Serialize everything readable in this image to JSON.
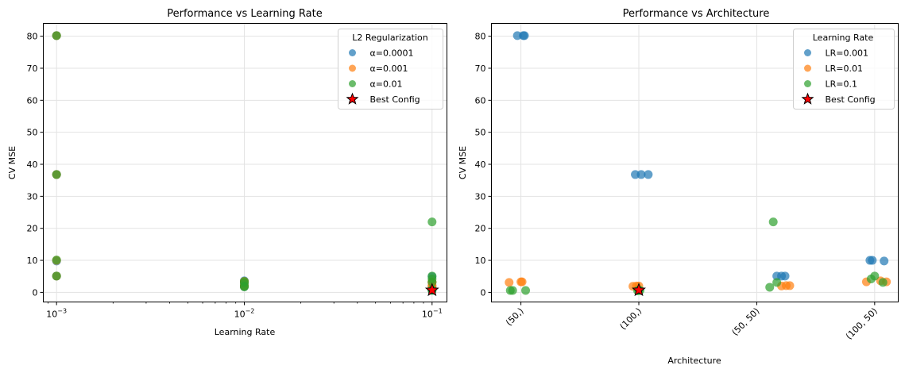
{
  "colors": {
    "blue": "#1f77b4",
    "orange": "#ff7f0e",
    "green": "#2ca02c",
    "best": "#ff0000"
  },
  "chart_data": [
    {
      "type": "scatter",
      "title": "Performance vs Learning Rate",
      "xlabel": "Learning Rate",
      "ylabel": "CV MSE",
      "xscale": "log",
      "xlim": [
        0.00085,
        0.12
      ],
      "ylim": [
        -3,
        84
      ],
      "grid": true,
      "xticks": [
        {
          "value": 0.001,
          "base": "10",
          "exp": "−3"
        },
        {
          "value": 0.01,
          "base": "10",
          "exp": "−2"
        },
        {
          "value": 0.1,
          "base": "10",
          "exp": "−1"
        }
      ],
      "yticks": [
        0,
        10,
        20,
        30,
        40,
        50,
        60,
        70,
        80
      ],
      "legend": {
        "title": "L2 Regularization",
        "placement": "top-right",
        "entries": [
          {
            "label": "α=0.0001",
            "color_key": "blue",
            "marker": "circle"
          },
          {
            "label": "α=0.001",
            "color_key": "orange",
            "marker": "circle"
          },
          {
            "label": "α=0.01",
            "color_key": "green",
            "marker": "circle"
          },
          {
            "label": "Best Config",
            "color_key": "best",
            "marker": "star"
          }
        ]
      },
      "series": [
        {
          "name": "α=0.0001",
          "color_key": "blue",
          "points": [
            [
              0.001,
              80.2
            ],
            [
              0.001,
              36.8
            ],
            [
              0.001,
              9.8
            ],
            [
              0.001,
              5.1
            ],
            [
              0.01,
              3.6
            ],
            [
              0.01,
              2.0
            ],
            [
              0.01,
              2.9
            ],
            [
              0.01,
              1.8
            ],
            [
              0.1,
              4.9
            ],
            [
              0.1,
              3.1
            ],
            [
              0.1,
              0.7
            ],
            [
              0.1,
              1.9
            ]
          ]
        },
        {
          "name": "α=0.001",
          "color_key": "orange",
          "points": [
            [
              0.001,
              80.2
            ],
            [
              0.001,
              36.8
            ],
            [
              0.001,
              10.0
            ],
            [
              0.001,
              5.1
            ],
            [
              0.01,
              3.3
            ],
            [
              0.01,
              2.0
            ],
            [
              0.01,
              3.4
            ],
            [
              0.01,
              2.1
            ],
            [
              0.1,
              3.3
            ],
            [
              0.1,
              3.2
            ],
            [
              0.1,
              1.8
            ],
            [
              0.1,
              2.2
            ]
          ]
        },
        {
          "name": "α=0.01",
          "color_key": "green",
          "points": [
            [
              0.001,
              80.2
            ],
            [
              0.001,
              36.8
            ],
            [
              0.001,
              10.1
            ],
            [
              0.001,
              5.1
            ],
            [
              0.01,
              3.4
            ],
            [
              0.01,
              2.0
            ],
            [
              0.01,
              3.0
            ],
            [
              0.01,
              1.7
            ],
            [
              0.1,
              0.6
            ],
            [
              0.1,
              0.8
            ],
            [
              0.1,
              5.1
            ],
            [
              0.1,
              22.0
            ],
            [
              0.1,
              4.2
            ],
            [
              0.1,
              3.2
            ]
          ]
        }
      ],
      "best": {
        "label": "Best Config",
        "point": [
          0.1,
          0.7
        ]
      }
    },
    {
      "type": "scatter",
      "title": "Performance vs Architecture",
      "xlabel": "Architecture",
      "ylabel": "CV MSE",
      "categories": [
        "(50,)",
        "(100,)",
        "(50, 50)",
        "(100, 50)"
      ],
      "xlim": [
        -0.25,
        3.2
      ],
      "ylim": [
        -3,
        84
      ],
      "grid": true,
      "yticks": [
        0,
        10,
        20,
        30,
        40,
        50,
        60,
        70,
        80
      ],
      "legend": {
        "title": "Learning Rate",
        "placement": "top-right",
        "entries": [
          {
            "label": "LR=0.001",
            "color_key": "blue",
            "marker": "circle"
          },
          {
            "label": "LR=0.01",
            "color_key": "orange",
            "marker": "circle"
          },
          {
            "label": "LR=0.1",
            "color_key": "green",
            "marker": "circle"
          },
          {
            "label": "Best Config",
            "color_key": "best",
            "marker": "star"
          }
        ]
      },
      "series": [
        {
          "name": "LR=0.001",
          "color_key": "blue",
          "points": [
            [
              -0.03,
              80.2
            ],
            [
              0.02,
              80.2
            ],
            [
              0.03,
              80.2
            ],
            [
              0.97,
              36.8
            ],
            [
              1.02,
              36.8
            ],
            [
              1.08,
              36.8
            ],
            [
              2.96,
              10.0
            ],
            [
              2.98,
              10.0
            ],
            [
              3.08,
              9.8
            ],
            [
              2.17,
              5.1
            ],
            [
              2.21,
              5.1
            ],
            [
              2.24,
              5.1
            ]
          ]
        },
        {
          "name": "LR=0.01",
          "color_key": "orange",
          "points": [
            [
              -0.1,
              3.1
            ],
            [
              0.0,
              3.3
            ],
            [
              0.01,
              3.3
            ],
            [
              0.95,
              1.9
            ],
            [
              0.98,
              2.0
            ],
            [
              1.0,
              2.0
            ],
            [
              2.93,
              3.3
            ],
            [
              3.05,
              3.6
            ],
            [
              3.1,
              3.3
            ],
            [
              2.21,
              2.0
            ],
            [
              2.25,
              2.1
            ],
            [
              2.28,
              2.1
            ]
          ]
        },
        {
          "name": "LR=0.1",
          "color_key": "green",
          "points": [
            [
              -0.09,
              0.6
            ],
            [
              -0.07,
              0.6
            ],
            [
              0.04,
              0.6
            ],
            [
              0.99,
              0.5
            ],
            [
              1.01,
              0.6
            ],
            [
              1.0,
              0.6
            ],
            [
              2.97,
              4.2
            ],
            [
              3.0,
              5.1
            ],
            [
              3.07,
              3.1
            ],
            [
              2.14,
              22.0
            ],
            [
              2.11,
              1.6
            ],
            [
              2.17,
              3.1
            ]
          ]
        }
      ],
      "best": {
        "label": "Best Config",
        "point": [
          1.0,
          0.7
        ]
      }
    }
  ]
}
